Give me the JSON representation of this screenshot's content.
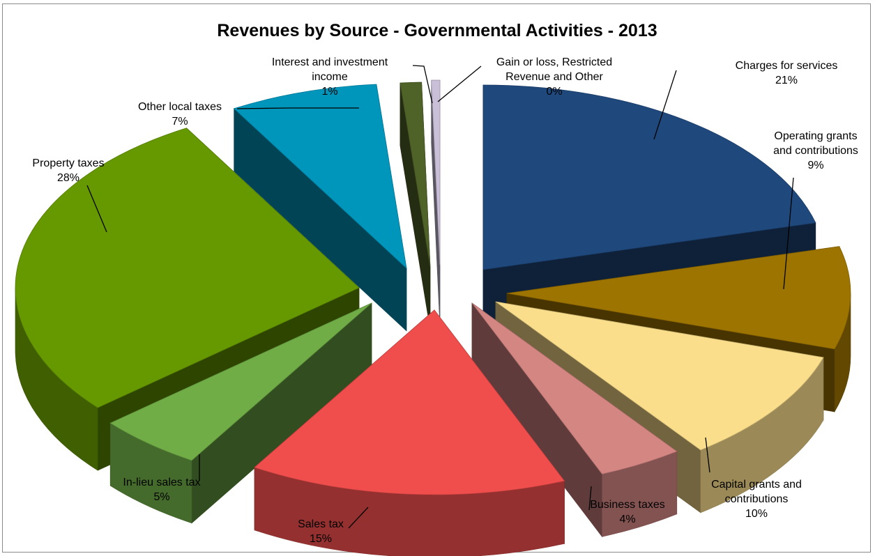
{
  "chart_data": {
    "type": "pie",
    "style": "3d-exploded",
    "title": "Revenues by Source - Governmental Activities - 2013",
    "slices": [
      {
        "label": "Charges for services",
        "percent_label": "21%",
        "value": 21,
        "color": "#1F497D"
      },
      {
        "label": "Operating grants and contributions",
        "percent_label": "9%",
        "value": 9,
        "color": "#9E7400"
      },
      {
        "label": "Capital grants and contributions",
        "percent_label": "10%",
        "value": 10,
        "color": "#FADE8C"
      },
      {
        "label": "Business taxes",
        "percent_label": "4%",
        "value": 4,
        "color": "#D48682"
      },
      {
        "label": "Sales tax",
        "percent_label": "15%",
        "value": 15,
        "color": "#EF4E4C"
      },
      {
        "label": "In-lieu sales tax",
        "percent_label": "5%",
        "value": 5,
        "color": "#70AD47"
      },
      {
        "label": "Property taxes",
        "percent_label": "28%",
        "value": 28,
        "color": "#669900"
      },
      {
        "label": "Other local taxes",
        "percent_label": "7%",
        "value": 7,
        "color": "#0096BC"
      },
      {
        "label": "Interest and investment income",
        "percent_label": "1%",
        "value": 1,
        "color": "#4F6228"
      },
      {
        "label": "Gain or loss, Restricted Revenue and Other",
        "percent_label": "0%",
        "value": 0.4,
        "color": "#C9BFD8"
      }
    ],
    "labels": [
      {
        "lines": [
          "Charges for services",
          "21%"
        ]
      },
      {
        "lines": [
          "Operating grants",
          "and contributions",
          "9%"
        ]
      },
      {
        "lines": [
          "Capital grants and",
          "contributions",
          "10%"
        ]
      },
      {
        "lines": [
          "Business taxes",
          "4%"
        ]
      },
      {
        "lines": [
          "Sales tax",
          "15%"
        ]
      },
      {
        "lines": [
          "In-lieu sales tax",
          "5%"
        ]
      },
      {
        "lines": [
          "Property taxes",
          "28%"
        ]
      },
      {
        "lines": [
          "Other local taxes",
          "7%"
        ]
      },
      {
        "lines": [
          "Interest and investment",
          "income",
          "1%"
        ]
      },
      {
        "lines": [
          "Gain or loss, Restricted",
          "Revenue and Other",
          "0%"
        ]
      }
    ]
  }
}
